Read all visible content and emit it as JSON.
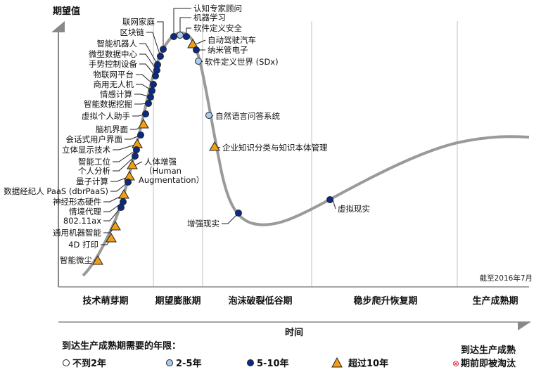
{
  "y_axis_label": "期望值",
  "x_axis_label": "时间",
  "as_of": "截至2016年7月",
  "phases": [
    "技术萌芽期",
    "期望膨胀期",
    "泡沫破裂低谷期",
    "稳步爬升恢复期",
    "生产成熟期"
  ],
  "colors": {
    "lt2": "#ffffff",
    "2to5": "#a9cdf0",
    "5to10": "#0b2a84",
    "gt10": "#f2a012",
    "obsolete": "#d0202a",
    "curve": "#9a9a9a"
  },
  "technologies": [
    {
      "label": "认知专家顾问",
      "category": "5to10"
    },
    {
      "label": "机器学习",
      "category": "2to5"
    },
    {
      "label": "软件定义安全",
      "category": "5to10"
    },
    {
      "label": "自动驾驶汽车",
      "category": "gt10"
    },
    {
      "label": "纳米管电子",
      "category": "5to10"
    },
    {
      "label": "软件定义世界 (SDx)",
      "category": "2to5"
    },
    {
      "label": "自然语言问答系统",
      "category": "2to5"
    },
    {
      "label": "企业知识分类与知识本体管理",
      "category": "gt10"
    },
    {
      "label": "增强现实",
      "category": "5to10"
    },
    {
      "label": "虚拟现实",
      "category": "5to10"
    },
    {
      "label": "联网家庭",
      "category": "5to10"
    },
    {
      "label": "区块链",
      "category": "5to10"
    },
    {
      "label": "智能机器人",
      "category": "5to10"
    },
    {
      "label": "微型数据中心",
      "category": "5to10"
    },
    {
      "label": "手势控制设备",
      "category": "5to10"
    },
    {
      "label": "物联网平台",
      "category": "5to10"
    },
    {
      "label": "商用无人机",
      "category": "5to10"
    },
    {
      "label": "情感计算",
      "category": "5to10"
    },
    {
      "label": "智能数据挖掘",
      "category": "5to10"
    },
    {
      "label": "虚拟个人助手",
      "category": "5to10"
    },
    {
      "label": "脑机界面",
      "category": "gt10"
    },
    {
      "label": "会话式用户界面",
      "category": "5to10"
    },
    {
      "label": "立体显示技术",
      "category": "gt10"
    },
    {
      "label": "智能工位",
      "category": "5to10"
    },
    {
      "label": "个人分析",
      "category": "5to10"
    },
    {
      "label": "量子计算",
      "category": "gt10"
    },
    {
      "label": "数据经纪人 PaaS (dbrPaaS)",
      "category": "5to10"
    },
    {
      "label": "神经形态硬件",
      "category": "gt10"
    },
    {
      "label": "情境代理",
      "category": "5to10"
    },
    {
      "label": "802.11ax",
      "category": "5to10"
    },
    {
      "label": "通用机器智能",
      "category": "gt10"
    },
    {
      "label": "4D 打印",
      "category": "gt10"
    },
    {
      "label": "智能微尘",
      "category": "gt10"
    },
    {
      "label": "人体增强",
      "label2": "（Human",
      "label3": "Augmentation）",
      "category": "gt10"
    }
  ],
  "legend": {
    "title": "到达生产成熟期需要的年限：",
    "items": [
      {
        "key": "lt2",
        "label": "不到2年"
      },
      {
        "key": "2to5",
        "label": "2-5年"
      },
      {
        "key": "5to10",
        "label": "5-10年"
      },
      {
        "key": "gt10",
        "label": "超过10年"
      }
    ],
    "obsolete_line1": "到达生产成熟",
    "obsolete_line2": "期前即被淘汰"
  }
}
